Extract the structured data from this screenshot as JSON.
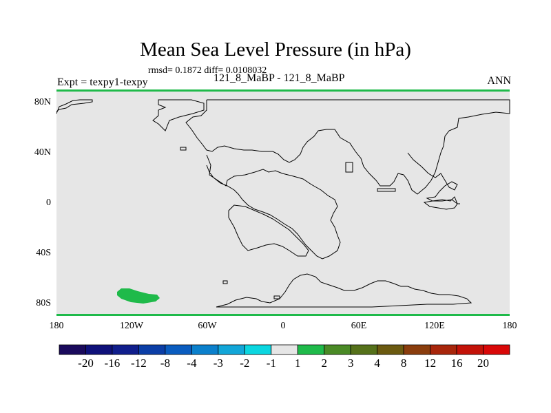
{
  "title": "Mean Sea Level Pressure (in hPa)",
  "stats": "rmsd= 0.1872 diff= 0.0108032",
  "left_label": "Expt = texpy1-texpy",
  "center_label": "121_8_MaBP - 121_8_MaBP",
  "right_label": "ANN",
  "lat_ticks": [
    "80N",
    "40N",
    "0",
    "40S",
    "80S"
  ],
  "lon_ticks": [
    "180",
    "120W",
    "60W",
    "0",
    "60E",
    "120E",
    "180"
  ],
  "colorbar": {
    "colors": [
      "#1a0a5c",
      "#0f117a",
      "#101e8c",
      "#0b3ea6",
      "#0a5cbf",
      "#0b80cc",
      "#12a6d8",
      "#0bd6e0",
      "#e6e6e6",
      "#1fba4a",
      "#4a8a26",
      "#55711a",
      "#6b5a10",
      "#8a3d0d",
      "#a8260b",
      "#c31208",
      "#d90808"
    ],
    "labels": [
      "-20",
      "-16",
      "-12",
      "-8",
      "-4",
      "-3",
      "-2",
      "-1",
      "1",
      "2",
      "3",
      "4",
      "8",
      "12",
      "16",
      "20"
    ]
  },
  "colors": {
    "background": "#e6e6e6",
    "positive_anomaly": "#1fba4a",
    "coastline": "#000000"
  }
}
